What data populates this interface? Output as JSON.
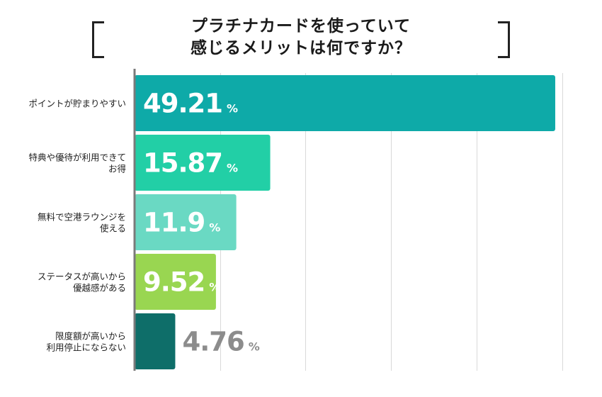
{
  "chart_data": {
    "type": "bar",
    "orientation": "horizontal",
    "title_lines": [
      "プラチナカードを使っていて",
      "感じるメリットは何ですか？"
    ],
    "categories": [
      [
        "ポイントが貯まりやすい"
      ],
      [
        "特典や優待が利用できて",
        "お得"
      ],
      [
        "無料で空港ラウンジを",
        "使える"
      ],
      [
        "ステータスが高いから",
        "優越感がある"
      ],
      [
        "限度額が高いから",
        "利用停止にならない"
      ]
    ],
    "values": [
      49.21,
      15.87,
      11.9,
      9.52,
      4.76
    ],
    "value_labels": [
      "49.21",
      "15.87",
      "11.9",
      "9.52",
      "4.76"
    ],
    "unit": "%",
    "colors": [
      "#0eaaa8",
      "#22cfa6",
      "#6ad9c3",
      "#99d651",
      "#0e6e69"
    ],
    "outside_label_color": "#8c8c8c",
    "xlim": [
      0,
      50
    ],
    "grid": true
  }
}
